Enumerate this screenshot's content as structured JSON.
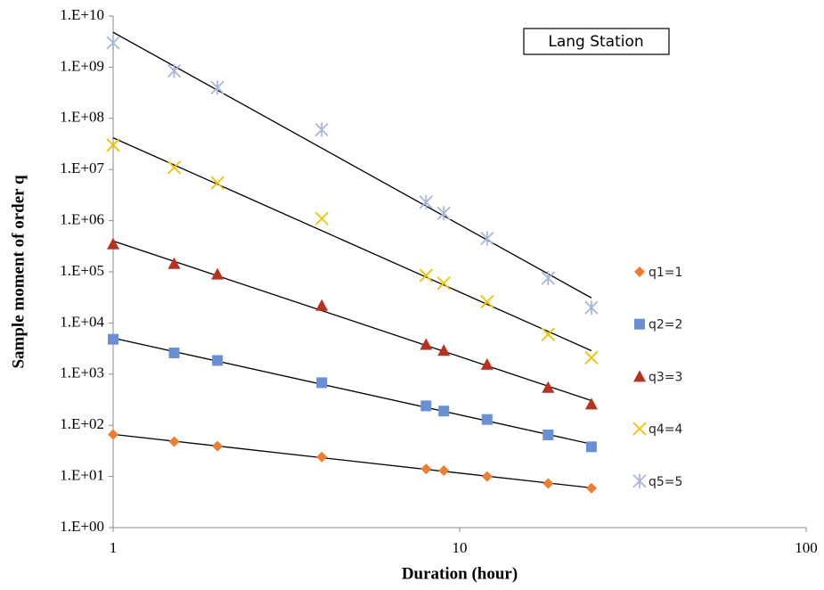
{
  "chart_data": {
    "type": "scatter",
    "title": "Lang Station",
    "x_label": "Duration (hour)",
    "y_label": "Sample moment of order q",
    "x": [
      1,
      1.5,
      2,
      4,
      8,
      9,
      12,
      18,
      24
    ],
    "series": [
      {
        "name": "q1=1",
        "color": "#ed7d31",
        "marker": "diamond",
        "values": [
          66,
          48,
          39,
          24,
          14,
          13,
          10,
          7.3,
          5.9
        ]
      },
      {
        "name": "q2=2",
        "color": "#6a8fd4",
        "marker": "square",
        "values": [
          4800,
          2600,
          1850,
          680,
          240,
          190,
          130,
          65,
          38
        ]
      },
      {
        "name": "q3=3",
        "color": "#b8321f",
        "marker": "triangle",
        "values": [
          350000,
          145000,
          90000,
          22000,
          3800,
          2900,
          1550,
          550,
          260
        ]
      },
      {
        "name": "q4=4",
        "color": "#f2c200",
        "marker": "x",
        "values": [
          30000000,
          11000000,
          5500000,
          1100000,
          85000,
          60000,
          26000,
          6000,
          2100
        ]
      },
      {
        "name": "q5=5",
        "color": "#a7b6dc",
        "marker": "star",
        "values": [
          3000000000,
          850000000,
          400000000,
          60000000,
          2300000,
          1400000,
          450000,
          75000,
          20000
        ]
      }
    ],
    "x_log": true,
    "y_log": true,
    "xlim": [
      1,
      100
    ],
    "xticks": [
      1,
      10,
      100
    ],
    "ylim": [
      1,
      10000000000
    ],
    "yticks": [
      {
        "value": 1,
        "label": "1.E+00"
      },
      {
        "value": 10,
        "label": "1.E+01"
      },
      {
        "value": 100,
        "label": "1.E+02"
      },
      {
        "value": 1000,
        "label": "1.E+03"
      },
      {
        "value": 10000,
        "label": "1.E+04"
      },
      {
        "value": 100000,
        "label": "1.E+05"
      },
      {
        "value": 1000000,
        "label": "1.E+06"
      },
      {
        "value": 10000000,
        "label": "1.E+07"
      },
      {
        "value": 100000000,
        "label": "1.E+08"
      },
      {
        "value": 1000000000,
        "label": "1.E+09"
      },
      {
        "value": 10000000000,
        "label": "1.E+10"
      }
    ],
    "trendline": "power",
    "grid": false,
    "legend": "right"
  }
}
